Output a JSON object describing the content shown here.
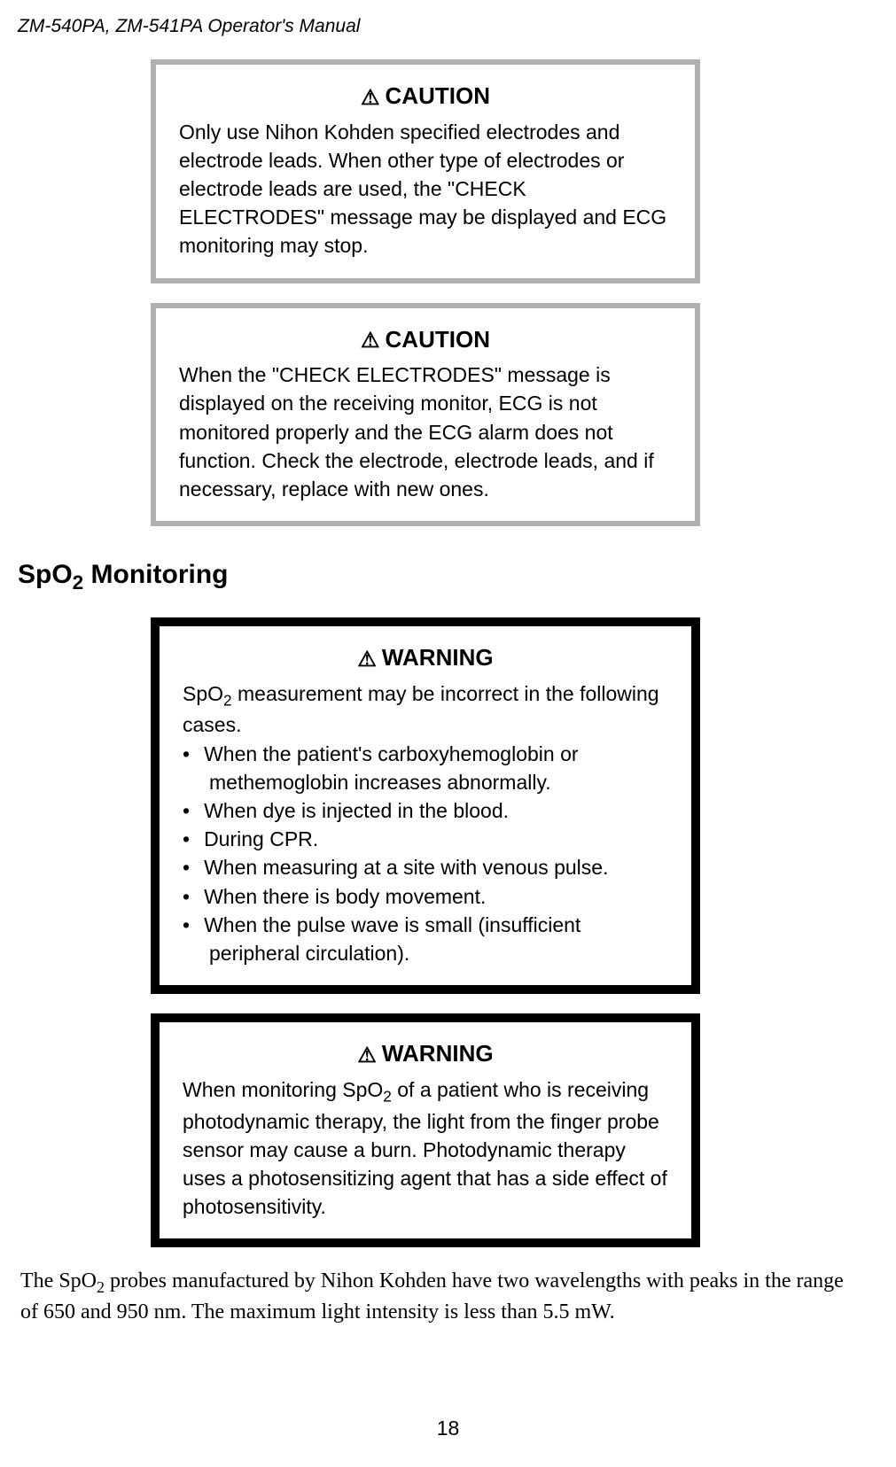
{
  "header": {
    "manual_title": "ZM-540PA, ZM-541PA  Operator's Manual"
  },
  "caution1": {
    "title": "CAUTION",
    "text": "Only use Nihon Kohden specified electrodes and electrode leads. When other type of electrodes or electrode leads are used, the \"CHECK ELECTRODES\" message may be displayed and ECG monitoring may stop."
  },
  "caution2": {
    "title": "CAUTION",
    "text": "When the \"CHECK ELECTRODES\" message is displayed on the receiving monitor, ECG is not monitored properly and the ECG alarm does not function. Check the electrode, electrode leads, and if necessary, replace with new ones."
  },
  "section": {
    "heading_prefix": "SpO",
    "heading_sub": "2",
    "heading_suffix": " Monitoring"
  },
  "warning1": {
    "title": "WARNING",
    "intro_prefix": "SpO",
    "intro_sub": "2",
    "intro_suffix": " measurement may be incorrect in the following cases.",
    "bullets": {
      "0": "When the patient's carboxyhemoglobin or methemoglobin increases abnormally.",
      "1": "When dye is injected in the blood.",
      "2": "During CPR.",
      "3": "When measuring at a site with venous pulse.",
      "4": "When there is body movement.",
      "5": "When the pulse wave is small (insufficient peripheral circulation)."
    }
  },
  "warning2": {
    "title": "WARNING",
    "text_prefix": "When monitoring SpO",
    "text_sub": "2",
    "text_suffix": " of a patient who is receiving photodynamic therapy, the light from the finger probe sensor may cause a burn. Photodynamic therapy uses a photosensitizing agent that has a side effect of photosensitivity."
  },
  "body": {
    "para_prefix": "The SpO",
    "para_sub": "2",
    "para_suffix": " probes manufactured by Nihon Kohden have two wavelengths with peaks in the range of 650 and 950 nm. The maximum light intensity is less than 5.5 mW."
  },
  "page_number": "18"
}
